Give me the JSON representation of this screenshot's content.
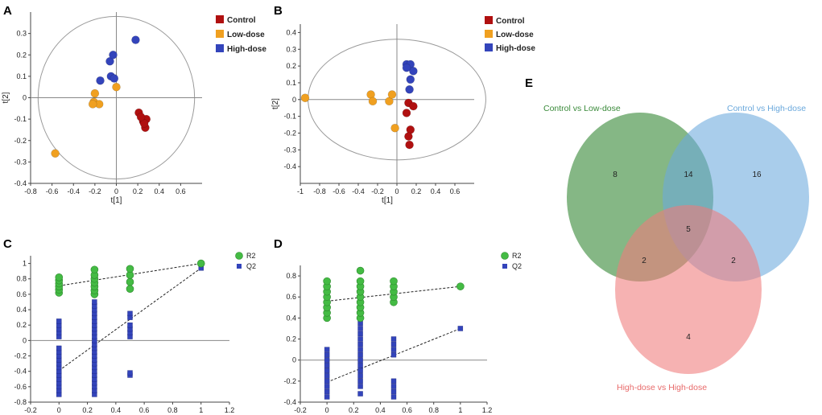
{
  "panels": [
    "A",
    "B",
    "C",
    "D",
    "E"
  ],
  "colors": {
    "control": "#b01010",
    "low": "#f0a020",
    "high": "#3344bb",
    "r2": "#44bb44",
    "q2": "#3344bb",
    "venn_green": "#3a8a3a",
    "venn_blue": "#6aa8dc",
    "venn_red": "#ef7a7a"
  },
  "chart_data": [
    {
      "panel": "A",
      "type": "scatter",
      "xlabel": "t[1]",
      "ylabel": "t[2]",
      "xlim": [
        -0.8,
        0.8
      ],
      "ylim": [
        -0.4,
        0.4
      ],
      "xticks": [
        "-0.8",
        "-0.6",
        "-0.4",
        "-0.2",
        "0",
        "0.2",
        "0.4",
        "0.6"
      ],
      "yticks": [
        "-0.4",
        "-0.3",
        "-0.2",
        "-0.1",
        "0",
        "0.1",
        "0.2",
        "0.3"
      ],
      "xtick_values": [
        -0.8,
        -0.6,
        -0.4,
        -0.2,
        0,
        0.2,
        0.4,
        0.6
      ],
      "ytick_values": [
        -0.4,
        -0.3,
        -0.2,
        -0.1,
        0,
        0.1,
        0.2,
        0.3
      ],
      "ellipse": {
        "rx": 0.73,
        "ry": 0.38
      },
      "legend": [
        "Control",
        "Low-dose",
        "High-dose"
      ],
      "series": [
        {
          "name": "Control",
          "color_key": "control",
          "points": [
            [
              0.21,
              -0.07
            ],
            [
              0.25,
              -0.11
            ],
            [
              0.27,
              -0.14
            ],
            [
              0.28,
              -0.1
            ],
            [
              0.26,
              -0.12
            ],
            [
              0.23,
              -0.09
            ]
          ]
        },
        {
          "name": "Low-dose",
          "color_key": "low",
          "points": [
            [
              -0.57,
              -0.26
            ],
            [
              -0.21,
              -0.02
            ],
            [
              -0.2,
              0.02
            ],
            [
              -0.16,
              -0.03
            ],
            [
              -0.22,
              -0.03
            ],
            [
              0.0,
              0.05
            ]
          ]
        },
        {
          "name": "High-dose",
          "color_key": "high",
          "points": [
            [
              -0.15,
              0.08
            ],
            [
              -0.06,
              0.17
            ],
            [
              -0.03,
              0.2
            ],
            [
              -0.05,
              0.1
            ],
            [
              -0.02,
              0.09
            ],
            [
              0.18,
              0.27
            ]
          ]
        }
      ]
    },
    {
      "panel": "B",
      "type": "scatter",
      "xlabel": "t[1]",
      "ylabel": "t[2]",
      "xlim": [
        -1.0,
        0.8
      ],
      "ylim": [
        -0.5,
        0.45
      ],
      "xticks": [
        "-1",
        "-0.8",
        "-0.6",
        "-0.4",
        "-0.2",
        "0",
        "0.2",
        "0.4",
        "0.6"
      ],
      "yticks": [
        "-0.4",
        "-0.3",
        "-0.2",
        "-0.1",
        "0",
        "0.1",
        "0.2",
        "0.3",
        "0.4"
      ],
      "xtick_values": [
        -1.0,
        -0.8,
        -0.6,
        -0.4,
        -0.2,
        0,
        0.2,
        0.4,
        0.6
      ],
      "ytick_values": [
        -0.4,
        -0.3,
        -0.2,
        -0.1,
        0,
        0.1,
        0.2,
        0.3,
        0.4
      ],
      "ellipse": {
        "rx": 0.92,
        "ry": 0.36
      },
      "legend": [
        "Control",
        "Low-dose",
        "High-dose"
      ],
      "series": [
        {
          "name": "Control",
          "color_key": "control",
          "points": [
            [
              0.12,
              -0.02
            ],
            [
              0.17,
              -0.04
            ],
            [
              0.1,
              -0.08
            ],
            [
              0.14,
              -0.18
            ],
            [
              0.12,
              -0.22
            ],
            [
              0.13,
              -0.27
            ]
          ]
        },
        {
          "name": "Low-dose",
          "color_key": "low",
          "points": [
            [
              -0.95,
              0.01
            ],
            [
              -0.27,
              0.03
            ],
            [
              -0.25,
              -0.01
            ],
            [
              -0.08,
              -0.01
            ],
            [
              -0.05,
              0.03
            ],
            [
              -0.02,
              -0.17
            ]
          ]
        },
        {
          "name": "High-dose",
          "color_key": "high",
          "points": [
            [
              0.1,
              0.21
            ],
            [
              0.14,
              0.21
            ],
            [
              0.17,
              0.17
            ],
            [
              0.1,
              0.19
            ],
            [
              0.14,
              0.12
            ],
            [
              0.13,
              0.06
            ]
          ]
        }
      ]
    },
    {
      "panel": "C",
      "type": "scatter",
      "xlim": [
        -0.2,
        1.2
      ],
      "ylim": [
        -0.8,
        1.1
      ],
      "xticks": [
        "-0.2",
        "0",
        "0.2",
        "0.4",
        "0.6",
        "0.8",
        "1",
        "1.2"
      ],
      "yticks": [
        "-0.8",
        "-0.6",
        "-0.4",
        "-0.2",
        "0",
        "0.2",
        "0.4",
        "0.6",
        "0.8",
        "1"
      ],
      "xtick_values": [
        -0.2,
        0,
        0.2,
        0.4,
        0.6,
        0.8,
        1.0,
        1.2
      ],
      "ytick_values": [
        -0.8,
        -0.6,
        -0.4,
        -0.2,
        0,
        0.2,
        0.4,
        0.6,
        0.8,
        1.0
      ],
      "legend": [
        "R2",
        "Q2"
      ],
      "r2_line": [
        [
          0,
          0.71
        ],
        [
          1,
          1.0
        ]
      ],
      "q2_line": [
        [
          0,
          -0.39
        ],
        [
          1,
          0.94
        ]
      ],
      "r2_points": [
        [
          0,
          0.62
        ],
        [
          0,
          0.66
        ],
        [
          0,
          0.7
        ],
        [
          0,
          0.74
        ],
        [
          0,
          0.78
        ],
        [
          0,
          0.82
        ],
        [
          0.25,
          0.6
        ],
        [
          0.25,
          0.65
        ],
        [
          0.25,
          0.7
        ],
        [
          0.25,
          0.75
        ],
        [
          0.25,
          0.8
        ],
        [
          0.25,
          0.85
        ],
        [
          0.25,
          0.92
        ],
        [
          0.5,
          0.67
        ],
        [
          0.5,
          0.76
        ],
        [
          0.5,
          0.85
        ],
        [
          0.5,
          0.93
        ],
        [
          1,
          1.0
        ]
      ],
      "q2_points": [
        [
          0,
          -0.7
        ],
        [
          0,
          -0.65
        ],
        [
          0,
          -0.6
        ],
        [
          0,
          -0.55
        ],
        [
          0,
          -0.5
        ],
        [
          0,
          -0.45
        ],
        [
          0,
          -0.4
        ],
        [
          0,
          -0.35
        ],
        [
          0,
          -0.3
        ],
        [
          0,
          -0.25
        ],
        [
          0,
          -0.2
        ],
        [
          0,
          -0.15
        ],
        [
          0,
          -0.1
        ],
        [
          0,
          0.05
        ],
        [
          0,
          0.1
        ],
        [
          0,
          0.15
        ],
        [
          0,
          0.2
        ],
        [
          0,
          0.25
        ],
        [
          0.25,
          -0.7
        ],
        [
          0.25,
          -0.65
        ],
        [
          0.25,
          -0.6
        ],
        [
          0.25,
          -0.55
        ],
        [
          0.25,
          -0.5
        ],
        [
          0.25,
          -0.45
        ],
        [
          0.25,
          -0.4
        ],
        [
          0.25,
          -0.35
        ],
        [
          0.25,
          -0.3
        ],
        [
          0.25,
          -0.25
        ],
        [
          0.25,
          -0.2
        ],
        [
          0.25,
          -0.15
        ],
        [
          0.25,
          -0.1
        ],
        [
          0.25,
          -0.05
        ],
        [
          0.25,
          0.0
        ],
        [
          0.25,
          0.05
        ],
        [
          0.25,
          0.1
        ],
        [
          0.25,
          0.15
        ],
        [
          0.25,
          0.2
        ],
        [
          0.25,
          0.25
        ],
        [
          0.25,
          0.3
        ],
        [
          0.25,
          0.35
        ],
        [
          0.25,
          0.4
        ],
        [
          0.25,
          0.45
        ],
        [
          0.25,
          0.5
        ],
        [
          0.5,
          -0.45
        ],
        [
          0.5,
          -0.42
        ],
        [
          0.5,
          0.05
        ],
        [
          0.5,
          0.1
        ],
        [
          0.5,
          0.15
        ],
        [
          0.5,
          0.2
        ],
        [
          0.5,
          0.3
        ],
        [
          0.5,
          0.35
        ],
        [
          1,
          0.94
        ]
      ]
    },
    {
      "panel": "D",
      "type": "scatter",
      "xlim": [
        -0.2,
        1.2
      ],
      "ylim": [
        -0.4,
        0.9
      ],
      "xticks": [
        "-0.2",
        "0",
        "0.2",
        "0.4",
        "0.6",
        "0.8",
        "1",
        "1.2"
      ],
      "yticks": [
        "-0.4",
        "-0.2",
        "0",
        "0.2",
        "0.4",
        "0.6",
        "0.8"
      ],
      "xtick_values": [
        -0.2,
        0,
        0.2,
        0.4,
        0.6,
        0.8,
        1.0,
        1.2
      ],
      "ytick_values": [
        -0.4,
        -0.2,
        0,
        0.2,
        0.4,
        0.6,
        0.8
      ],
      "legend": [
        "R2",
        "Q2"
      ],
      "r2_line": [
        [
          0,
          0.56
        ],
        [
          1,
          0.7
        ]
      ],
      "q2_line": [
        [
          0,
          -0.21
        ],
        [
          1,
          0.3
        ]
      ],
      "r2_points": [
        [
          0,
          0.4
        ],
        [
          0,
          0.45
        ],
        [
          0,
          0.5
        ],
        [
          0,
          0.55
        ],
        [
          0,
          0.6
        ],
        [
          0,
          0.65
        ],
        [
          0,
          0.7
        ],
        [
          0,
          0.75
        ],
        [
          0.25,
          0.4
        ],
        [
          0.25,
          0.45
        ],
        [
          0.25,
          0.5
        ],
        [
          0.25,
          0.55
        ],
        [
          0.25,
          0.6
        ],
        [
          0.25,
          0.65
        ],
        [
          0.25,
          0.7
        ],
        [
          0.25,
          0.75
        ],
        [
          0.25,
          0.85
        ],
        [
          0.5,
          0.55
        ],
        [
          0.5,
          0.6
        ],
        [
          0.5,
          0.65
        ],
        [
          0.5,
          0.7
        ],
        [
          0.5,
          0.75
        ],
        [
          1,
          0.7
        ]
      ],
      "q2_points": [
        [
          0,
          -0.35
        ],
        [
          0,
          -0.3
        ],
        [
          0,
          -0.25
        ],
        [
          0,
          -0.2
        ],
        [
          0,
          -0.15
        ],
        [
          0,
          -0.1
        ],
        [
          0,
          -0.05
        ],
        [
          0,
          0.0
        ],
        [
          0,
          0.05
        ],
        [
          0,
          0.1
        ],
        [
          0.25,
          -0.32
        ],
        [
          0.25,
          -0.25
        ],
        [
          0.25,
          -0.2
        ],
        [
          0.25,
          -0.15
        ],
        [
          0.25,
          -0.1
        ],
        [
          0.25,
          -0.05
        ],
        [
          0.25,
          0.0
        ],
        [
          0.25,
          0.05
        ],
        [
          0.25,
          0.1
        ],
        [
          0.25,
          0.15
        ],
        [
          0.25,
          0.2
        ],
        [
          0.25,
          0.25
        ],
        [
          0.25,
          0.3
        ],
        [
          0.25,
          0.35
        ],
        [
          0.5,
          -0.35
        ],
        [
          0.5,
          -0.3
        ],
        [
          0.5,
          -0.25
        ],
        [
          0.5,
          -0.2
        ],
        [
          0.5,
          0.05
        ],
        [
          0.5,
          0.1
        ],
        [
          0.5,
          0.15
        ],
        [
          0.5,
          0.2
        ],
        [
          1,
          0.3
        ]
      ]
    },
    {
      "panel": "E",
      "type": "venn",
      "sets": [
        {
          "name": "Control vs Low-dose",
          "color_key": "venn_green"
        },
        {
          "name": "Control vs High-dose",
          "color_key": "venn_blue"
        },
        {
          "name": "High-dose vs High-dose",
          "color_key": "venn_red"
        }
      ],
      "counts": {
        "only_1": "8",
        "only_2": "16",
        "only_3": "4",
        "1_2": "14",
        "1_3": "2",
        "2_3": "2",
        "1_2_3": "5"
      }
    }
  ]
}
